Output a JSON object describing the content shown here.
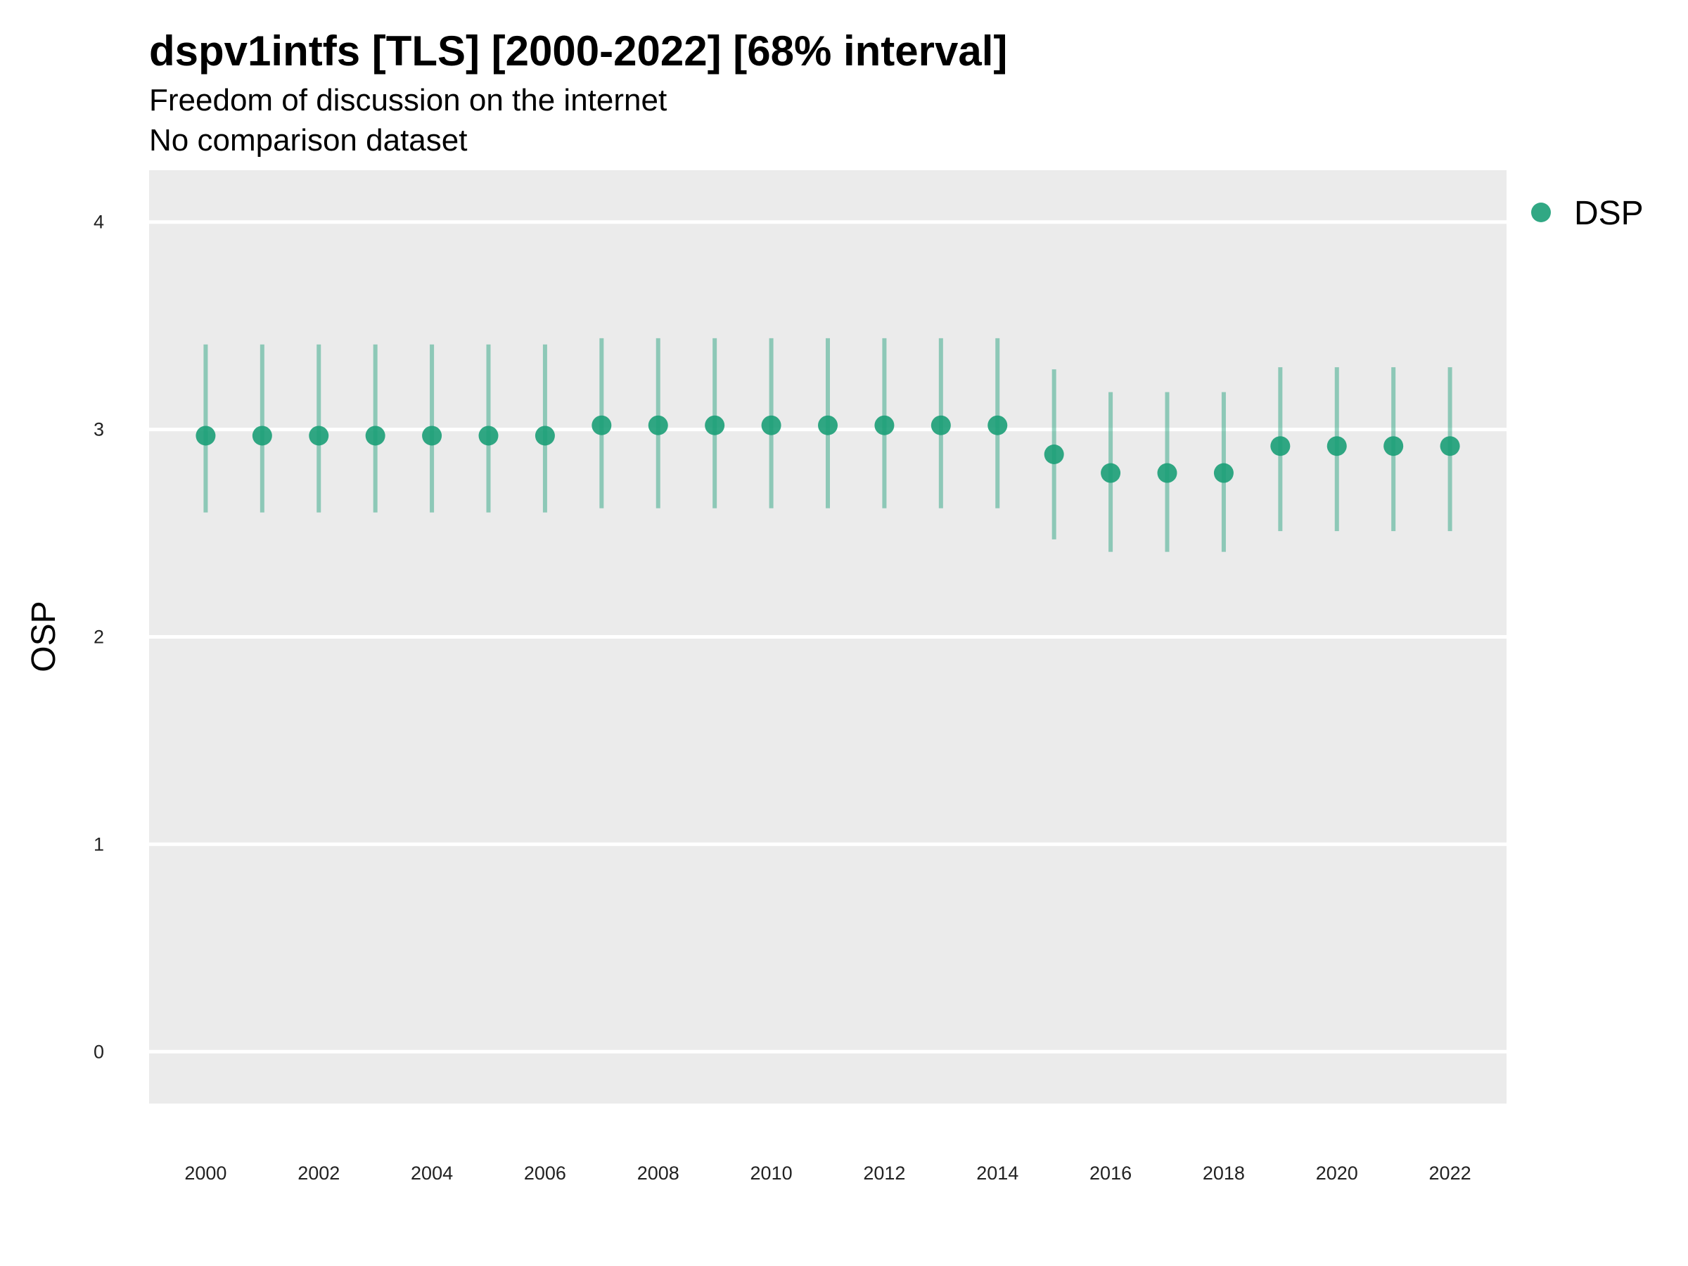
{
  "chart_data": {
    "type": "scatter",
    "title": "dspv1intfs [TLS] [2000-2022] [68% interval]",
    "subtitle": "Freedom of discussion on the internet",
    "caption": "No comparison dataset",
    "xlabel": "",
    "ylabel": "OSP",
    "xlim": [
      1999,
      2023
    ],
    "ylim": [
      -0.25,
      4.25
    ],
    "x_ticks": [
      2000,
      2002,
      2004,
      2006,
      2008,
      2010,
      2012,
      2014,
      2016,
      2018,
      2020,
      2022
    ],
    "y_ticks": [
      0,
      1,
      2,
      3,
      4
    ],
    "grid": true,
    "legend_position": "right",
    "series": [
      {
        "name": "DSP",
        "color": "#1b9e77",
        "x": [
          2000,
          2001,
          2002,
          2003,
          2004,
          2005,
          2006,
          2007,
          2008,
          2009,
          2010,
          2011,
          2012,
          2013,
          2014,
          2015,
          2016,
          2017,
          2018,
          2019,
          2020,
          2021,
          2022
        ],
        "y": [
          2.97,
          2.97,
          2.97,
          2.97,
          2.97,
          2.97,
          2.97,
          3.02,
          3.02,
          3.02,
          3.02,
          3.02,
          3.02,
          3.02,
          3.02,
          2.88,
          2.79,
          2.79,
          2.79,
          2.92,
          2.92,
          2.92,
          2.92
        ],
        "lower": [
          2.6,
          2.6,
          2.6,
          2.6,
          2.6,
          2.6,
          2.6,
          2.62,
          2.62,
          2.62,
          2.62,
          2.62,
          2.62,
          2.62,
          2.62,
          2.47,
          2.41,
          2.41,
          2.41,
          2.51,
          2.51,
          2.51,
          2.51
        ],
        "upper": [
          3.41,
          3.41,
          3.41,
          3.41,
          3.41,
          3.41,
          3.41,
          3.44,
          3.44,
          3.44,
          3.44,
          3.44,
          3.44,
          3.44,
          3.44,
          3.29,
          3.18,
          3.18,
          3.18,
          3.3,
          3.3,
          3.3,
          3.3
        ]
      }
    ]
  },
  "colors": {
    "panel_background": "#ebebeb",
    "grid_line": "#ffffff",
    "point": "#1b9e77"
  }
}
